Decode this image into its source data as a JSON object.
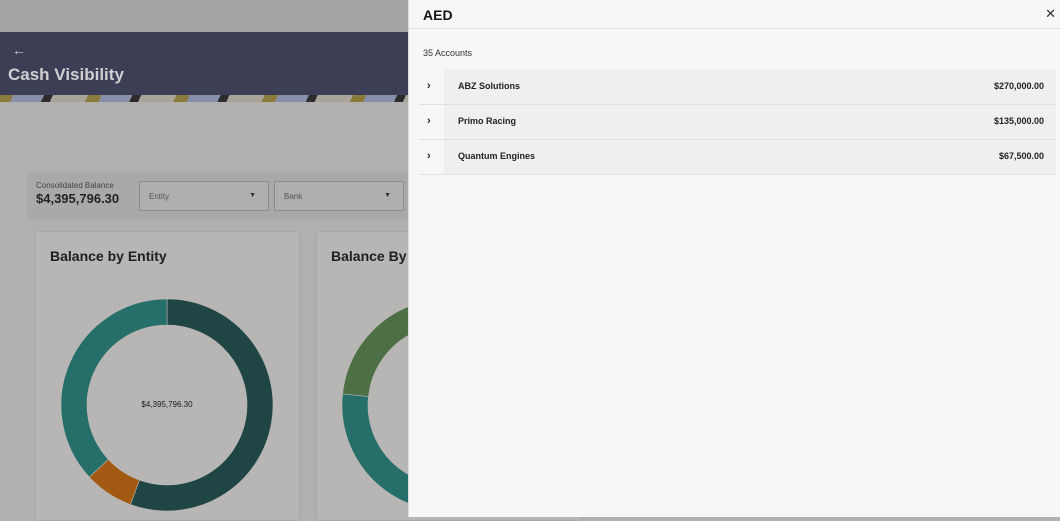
{
  "page": {
    "back_icon": "arrow-left-icon",
    "title": "Cash Visibility"
  },
  "filters": {
    "consolidated_label": "Consolidated Balance",
    "consolidated_value": "$4,395,796.30",
    "entity_placeholder": "Entity",
    "bank_placeholder": "Bank"
  },
  "cards": [
    {
      "title": "Balance by Entity"
    },
    {
      "title": "Balance By"
    }
  ],
  "chart_data": [
    {
      "type": "pie",
      "variant": "donut",
      "title": "Balance by Entity",
      "center_label": "$4,395,796.30",
      "values": [
        55.6,
        7.5,
        36.9
      ],
      "value_unit": "percent (estimated)",
      "colors": [
        "#1f4644",
        "#a25a12",
        "#266e69"
      ]
    },
    {
      "type": "pie",
      "variant": "donut",
      "title": "Balance By",
      "partially_hidden": true,
      "colors": [
        "#4c6f45",
        "#266e69"
      ]
    }
  ],
  "panel": {
    "title": "AED",
    "close_icon": "close-icon",
    "count": "35 Accounts",
    "rows": [
      {
        "name": "ABZ Solutions",
        "amount": "$270,000.00"
      },
      {
        "name": "Primo Racing",
        "amount": "$135,000.00"
      },
      {
        "name": "Quantum Engines",
        "amount": "$67,500.00"
      }
    ]
  }
}
